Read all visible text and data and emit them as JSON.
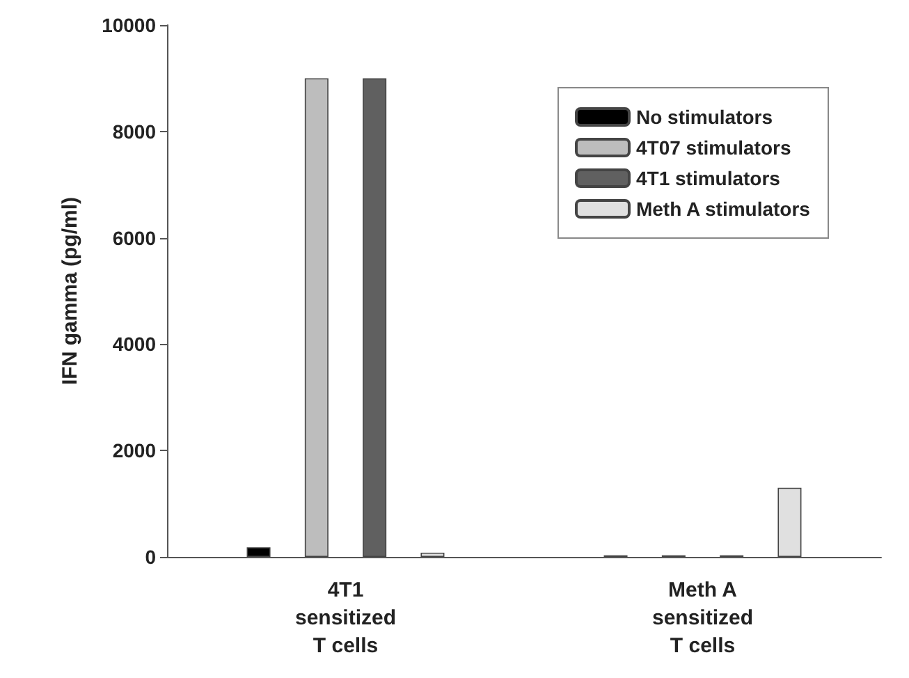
{
  "chart_data": {
    "type": "bar",
    "ylabel": "IFN gamma (pg/ml)",
    "categories": [
      "4T1\nsensitized\nT cells",
      "Meth A\nsensitized\nT cells"
    ],
    "series": [
      {
        "name": "No stimulators",
        "color": "#000000",
        "values": [
          180,
          30
        ]
      },
      {
        "name": "4T07 stimulators",
        "color": "#bdbdbd",
        "values": [
          9000,
          30
        ]
      },
      {
        "name": "4T1 stimulators",
        "color": "#606060",
        "values": [
          9000,
          30
        ]
      },
      {
        "name": "Meth A stimulators",
        "color": "#e0e0e0",
        "values": [
          80,
          1300
        ]
      }
    ],
    "ylim": [
      0,
      10000
    ],
    "yticks": [
      0,
      2000,
      4000,
      6000,
      8000,
      10000
    ],
    "grid": false,
    "legend": "top right"
  }
}
